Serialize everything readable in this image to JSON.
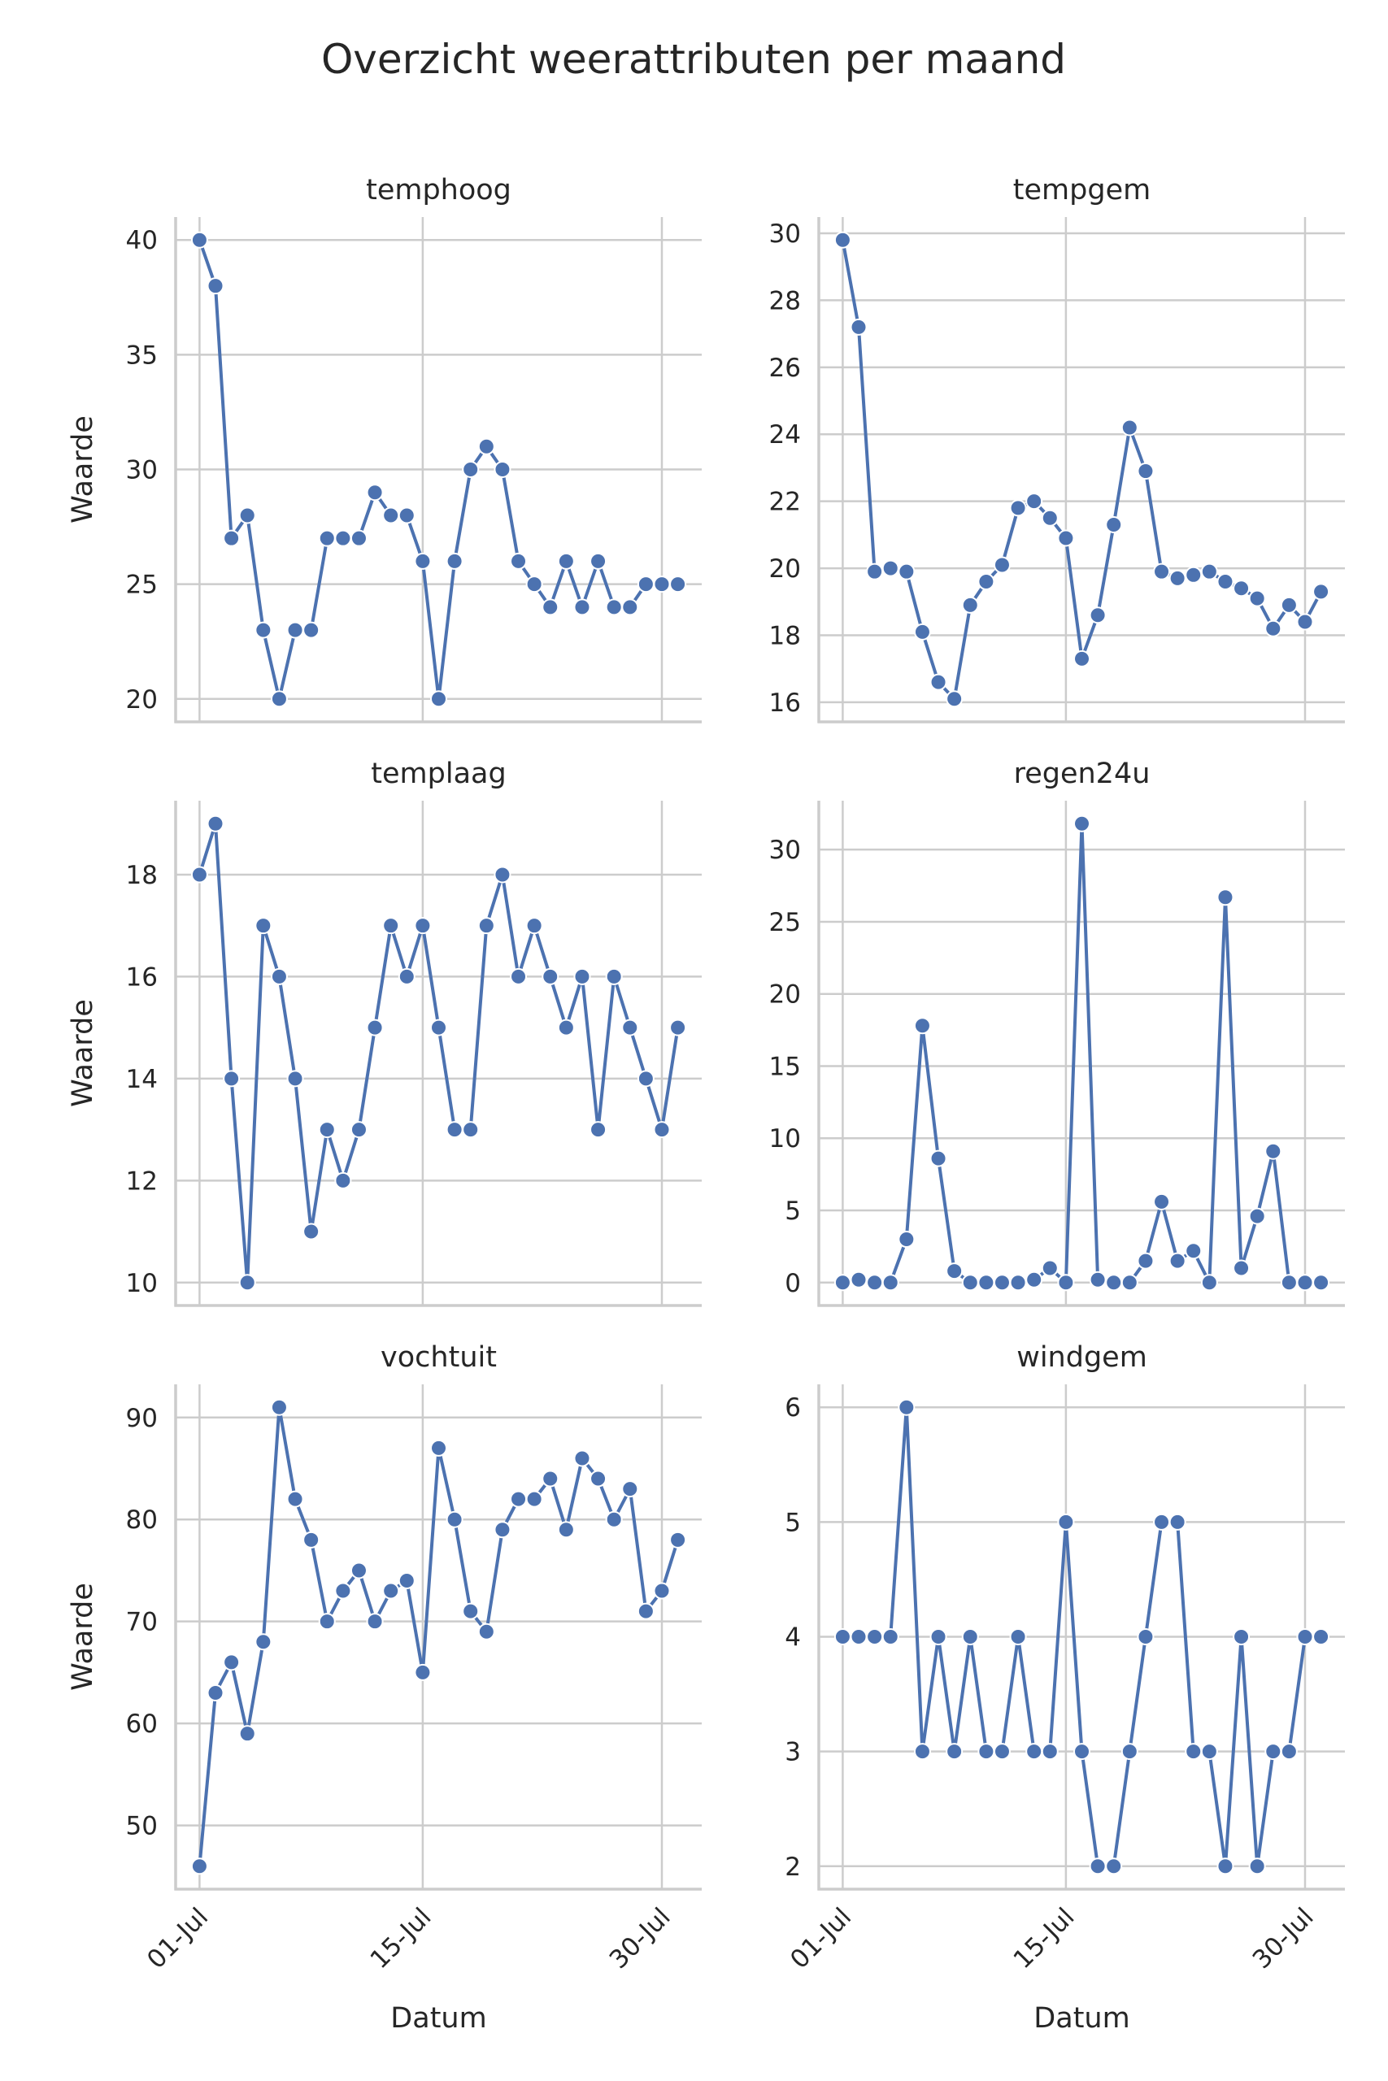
{
  "chart_data": {
    "type": "line",
    "title": "Overzicht weerattributen per maand",
    "xlabel": "Datum",
    "ylabel": "Waarde",
    "x": [
      1,
      2,
      3,
      4,
      5,
      6,
      7,
      8,
      9,
      10,
      11,
      12,
      13,
      14,
      15,
      16,
      17,
      18,
      19,
      20,
      21,
      22,
      23,
      24,
      25,
      26,
      27,
      28,
      29,
      30,
      31
    ],
    "x_unit": "day of July",
    "xticks": [
      1,
      15,
      30
    ],
    "xtick_labels": [
      "01-Jul",
      "15-Jul",
      "30-Jul"
    ],
    "grid": true,
    "series_color": "#4c72b0",
    "panels": [
      {
        "name": "temphoog",
        "yticks": [
          20,
          25,
          30,
          35,
          40
        ],
        "values": [
          40,
          38,
          27,
          28,
          23,
          20,
          23,
          23,
          27,
          27,
          27,
          29,
          28,
          28,
          26,
          20,
          26,
          30,
          31,
          30,
          26,
          25,
          24,
          26,
          24,
          26,
          24,
          24,
          25,
          25,
          25
        ]
      },
      {
        "name": "tempgem",
        "yticks": [
          16,
          18,
          20,
          22,
          24,
          26,
          28,
          30
        ],
        "values": [
          29.8,
          27.2,
          19.9,
          20.0,
          19.9,
          18.1,
          16.6,
          16.1,
          18.9,
          19.6,
          20.1,
          21.8,
          22.0,
          21.5,
          20.9,
          17.3,
          18.6,
          21.3,
          24.2,
          22.9,
          19.9,
          19.7,
          19.8,
          19.9,
          19.6,
          19.4,
          19.1,
          18.2,
          18.9,
          18.4,
          19.3
        ]
      },
      {
        "name": "templaag",
        "yticks": [
          10,
          12,
          14,
          16,
          18
        ],
        "values": [
          18,
          19,
          14,
          10,
          17,
          16,
          14,
          11,
          13,
          12,
          13,
          15,
          17,
          16,
          17,
          15,
          13,
          13,
          17,
          18,
          16,
          17,
          16,
          15,
          16,
          13,
          16,
          15,
          14,
          13,
          15
        ]
      },
      {
        "name": "regen24u",
        "yticks": [
          0,
          5,
          10,
          15,
          20,
          25,
          30
        ],
        "values": [
          0,
          0.2,
          0,
          0,
          3.0,
          17.8,
          8.6,
          0.8,
          0,
          0,
          0,
          0,
          0.2,
          1.0,
          0,
          31.8,
          0.2,
          0,
          0,
          1.5,
          5.6,
          1.5,
          2.2,
          0,
          26.7,
          1.0,
          4.6,
          9.1,
          0,
          0,
          0
        ]
      },
      {
        "name": "vochtuit",
        "yticks": [
          50,
          60,
          70,
          80,
          90
        ],
        "values": [
          46,
          63,
          66,
          59,
          68,
          91,
          82,
          78,
          70,
          73,
          75,
          70,
          73,
          74,
          65,
          87,
          80,
          71,
          69,
          79,
          82,
          82,
          84,
          79,
          86,
          84,
          80,
          83,
          71,
          73,
          78
        ]
      },
      {
        "name": "windgem",
        "yticks": [
          2,
          3,
          4,
          5,
          6
        ],
        "values": [
          4,
          4,
          4,
          4,
          6,
          3,
          4,
          3,
          4,
          3,
          3,
          4,
          3,
          3,
          5,
          3,
          2,
          2,
          3,
          4,
          5,
          5,
          3,
          3,
          2,
          4,
          2,
          3,
          3,
          4,
          4
        ]
      }
    ]
  }
}
